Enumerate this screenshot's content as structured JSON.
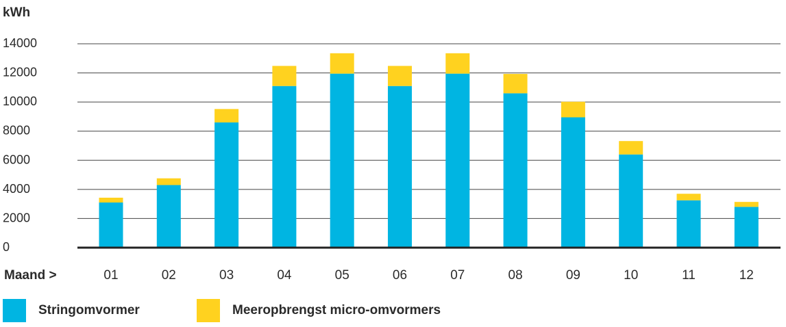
{
  "chart_data": {
    "type": "bar",
    "stacked": true,
    "ylabel": "kWh",
    "xlabel": "Maand >",
    "categories": [
      "01",
      "02",
      "03",
      "04",
      "05",
      "06",
      "07",
      "08",
      "09",
      "10",
      "11",
      "12"
    ],
    "ylim": [
      0,
      14000
    ],
    "yticks": [
      0,
      2000,
      4000,
      6000,
      8000,
      10000,
      12000,
      14000
    ],
    "grid": true,
    "legend_position": "bottom",
    "series": [
      {
        "name": "Stringomvormer",
        "color": "#00b5e2",
        "values": [
          3100,
          4300,
          8600,
          11100,
          11950,
          11100,
          11950,
          10600,
          8950,
          6400,
          3250,
          2800
        ]
      },
      {
        "name": "Meeropbrengst micro-omvormers",
        "color": "#ffd21f",
        "values": [
          330,
          460,
          920,
          1380,
          1400,
          1380,
          1400,
          1330,
          1070,
          920,
          450,
          340
        ]
      }
    ]
  }
}
